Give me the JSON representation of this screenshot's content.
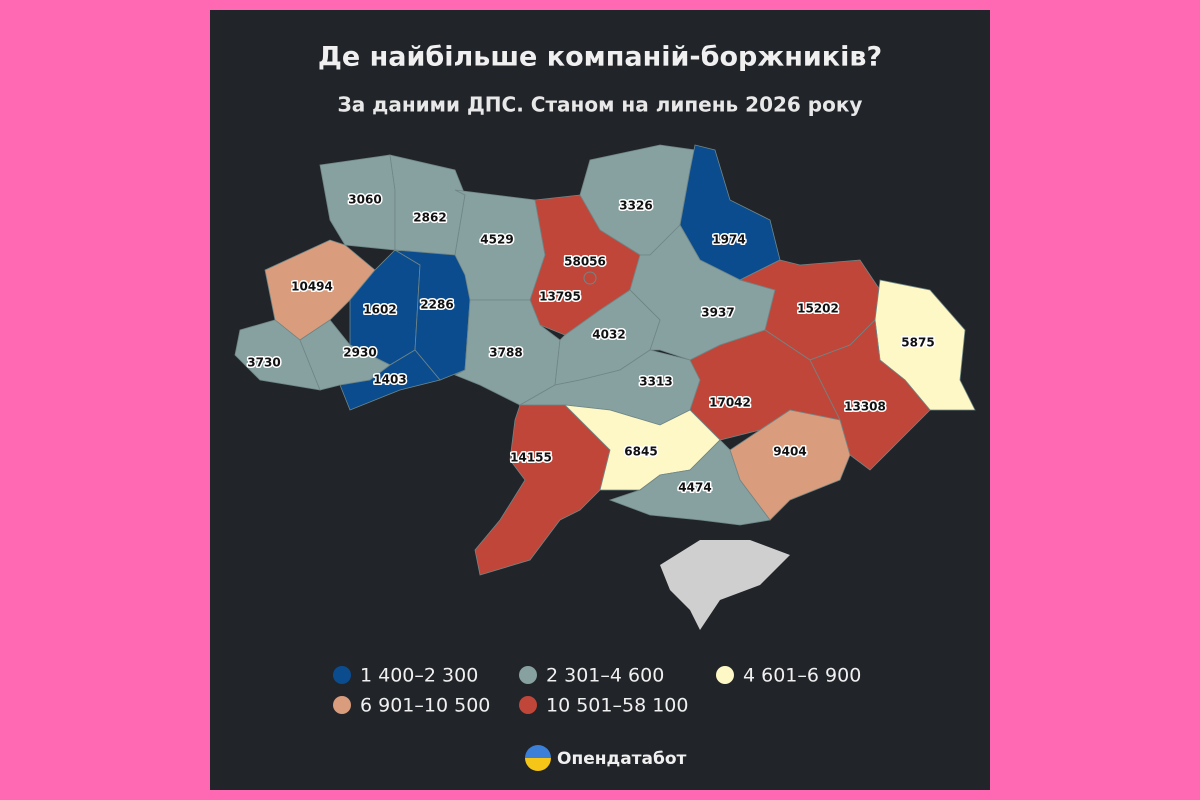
{
  "title": "Де найбільше компаній-боржників?",
  "subtitle": "За даними ДПС. Станом на липень 2026 року",
  "regions": [
    {
      "value": 3060,
      "color": "#87a0a0"
    },
    {
      "value": 2862,
      "color": "#87a0a0"
    },
    {
      "value": 4529,
      "color": "#87a0a0"
    },
    {
      "value": 58056,
      "color": "#c0463a"
    },
    {
      "value": 3326,
      "color": "#87a0a0"
    },
    {
      "value": 1974,
      "color": "#0b4c8f"
    },
    {
      "value": 10494,
      "color": "#d99c7d"
    },
    {
      "value": 1602,
      "color": "#0b4c8f"
    },
    {
      "value": 2286,
      "color": "#0b4c8f"
    },
    {
      "value": 13795,
      "color": "#c0463a"
    },
    {
      "value": 3937,
      "color": "#87a0a0"
    },
    {
      "value": 15202,
      "color": "#c0463a"
    },
    {
      "value": 5875,
      "color": "#fdf8c6"
    },
    {
      "value": 3730,
      "color": "#87a0a0"
    },
    {
      "value": 2930,
      "color": "#87a0a0"
    },
    {
      "value": 3788,
      "color": "#87a0a0"
    },
    {
      "value": 4032,
      "color": "#87a0a0"
    },
    {
      "value": 1403,
      "color": "#0b4c8f"
    },
    {
      "value": 3313,
      "color": "#87a0a0"
    },
    {
      "value": 17042,
      "color": "#c0463a"
    },
    {
      "value": 13308,
      "color": "#c0463a"
    },
    {
      "value": 14155,
      "color": "#c0463a"
    },
    {
      "value": 6845,
      "color": "#fdf8c6"
    },
    {
      "value": 9404,
      "color": "#d99c7d"
    },
    {
      "value": 4474,
      "color": "#87a0a0"
    }
  ],
  "legend": [
    {
      "label": "1 400–2 300",
      "color": "#0b4c8f"
    },
    {
      "label": "2 301–4 600",
      "color": "#87a0a0"
    },
    {
      "label": "4 601–6 900",
      "color": "#fdf8c6"
    },
    {
      "label": "6 901–10 500",
      "color": "#d99c7d"
    },
    {
      "label": "10 501–58 100",
      "color": "#c0463a"
    }
  ],
  "brand": "Опендатабот"
}
